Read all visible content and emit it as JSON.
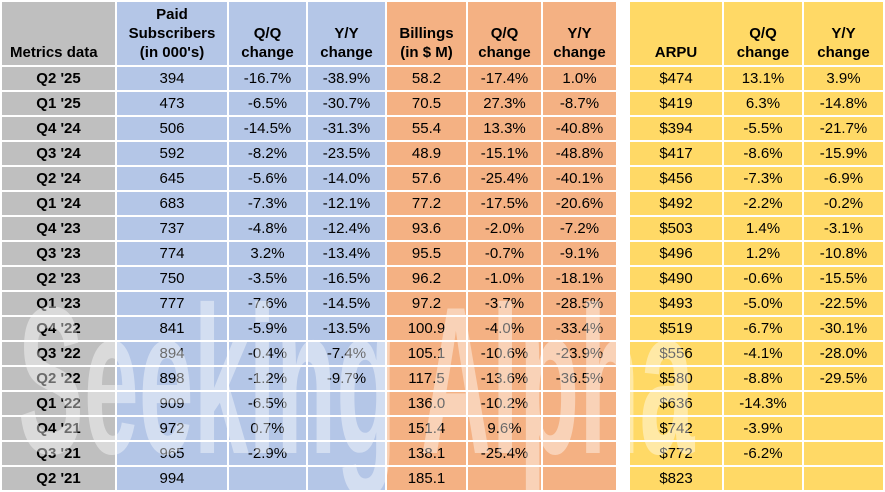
{
  "watermark_text": "Seeking Alpha",
  "colors": {
    "label_gray": "#bfbfbf",
    "subscribers_blue": "#b4c6e7",
    "billings_orange": "#f4b183",
    "arpu_yellow": "#ffd966",
    "gridline_white": "#ffffff",
    "text_black": "#000000"
  },
  "header": {
    "corner": "Metrics data",
    "paid_subscribers": "Paid\nSubscribers\n(in 000's)",
    "qq": "Q/Q\nchange",
    "yy": "Y/Y\nchange",
    "billings": "Billings\n(in $ M)",
    "arpu": "ARPU"
  },
  "chart_data": {
    "type": "table",
    "corner_label": "Metrics data",
    "column_groups": [
      {
        "name": "paid-subscribers",
        "color": "#b4c6e7",
        "columns": [
          "Paid Subscribers (in 000's)",
          "Q/Q change",
          "Y/Y change"
        ]
      },
      {
        "name": "billings",
        "color": "#f4b183",
        "columns": [
          "Billings (in $ M)",
          "Q/Q change",
          "Y/Y change"
        ]
      },
      {
        "name": "arpu",
        "color": "#ffd966",
        "columns": [
          "ARPU",
          "Q/Q change",
          "Y/Y change"
        ]
      }
    ],
    "rows": [
      {
        "label": "Q2 '25",
        "cells": [
          "394",
          "-16.7%",
          "-38.9%",
          "58.2",
          "-17.4%",
          "1.0%",
          "$474",
          "13.1%",
          "3.9%"
        ]
      },
      {
        "label": "Q1 '25",
        "cells": [
          "473",
          "-6.5%",
          "-30.7%",
          "70.5",
          "27.3%",
          "-8.7%",
          "$419",
          "6.3%",
          "-14.8%"
        ]
      },
      {
        "label": "Q4 '24",
        "cells": [
          "506",
          "-14.5%",
          "-31.3%",
          "55.4",
          "13.3%",
          "-40.8%",
          "$394",
          "-5.5%",
          "-21.7%"
        ]
      },
      {
        "label": "Q3 '24",
        "cells": [
          "592",
          "-8.2%",
          "-23.5%",
          "48.9",
          "-15.1%",
          "-48.8%",
          "$417",
          "-8.6%",
          "-15.9%"
        ]
      },
      {
        "label": "Q2 '24",
        "cells": [
          "645",
          "-5.6%",
          "-14.0%",
          "57.6",
          "-25.4%",
          "-40.1%",
          "$456",
          "-7.3%",
          "-6.9%"
        ]
      },
      {
        "label": "Q1 '24",
        "cells": [
          "683",
          "-7.3%",
          "-12.1%",
          "77.2",
          "-17.5%",
          "-20.6%",
          "$492",
          "-2.2%",
          "-0.2%"
        ]
      },
      {
        "label": "Q4 '23",
        "cells": [
          "737",
          "-4.8%",
          "-12.4%",
          "93.6",
          "-2.0%",
          "-7.2%",
          "$503",
          "1.4%",
          "-3.1%"
        ]
      },
      {
        "label": "Q3 '23",
        "cells": [
          "774",
          "3.2%",
          "-13.4%",
          "95.5",
          "-0.7%",
          "-9.1%",
          "$496",
          "1.2%",
          "-10.8%"
        ]
      },
      {
        "label": "Q2 '23",
        "cells": [
          "750",
          "-3.5%",
          "-16.5%",
          "96.2",
          "-1.0%",
          "-18.1%",
          "$490",
          "-0.6%",
          "-15.5%"
        ]
      },
      {
        "label": "Q1 '23",
        "cells": [
          "777",
          "-7.6%",
          "-14.5%",
          "97.2",
          "-3.7%",
          "-28.5%",
          "$493",
          "-5.0%",
          "-22.5%"
        ]
      },
      {
        "label": "Q4 '22",
        "cells": [
          "841",
          "-5.9%",
          "-13.5%",
          "100.9",
          "-4.0%",
          "-33.4%",
          "$519",
          "-6.7%",
          "-30.1%"
        ]
      },
      {
        "label": "Q3 '22",
        "cells": [
          "894",
          "-0.4%",
          "-7.4%",
          "105.1",
          "-10.6%",
          "-23.9%",
          "$556",
          "-4.1%",
          "-28.0%"
        ]
      },
      {
        "label": "Q2 '22",
        "cells": [
          "898",
          "-1.2%",
          "-9.7%",
          "117.5",
          "-13.6%",
          "-36.5%",
          "$580",
          "-8.8%",
          "-29.5%"
        ]
      },
      {
        "label": "Q1 '22",
        "cells": [
          "909",
          "-6.5%",
          "",
          "136.0",
          "-10.2%",
          "",
          "$636",
          "-14.3%",
          ""
        ]
      },
      {
        "label": "Q4 '21",
        "cells": [
          "972",
          "0.7%",
          "",
          "151.4",
          "9.6%",
          "",
          "$742",
          "-3.9%",
          ""
        ]
      },
      {
        "label": "Q3 '21",
        "cells": [
          "965",
          "-2.9%",
          "",
          "138.1",
          "-25.4%",
          "",
          "$772",
          "-6.2%",
          ""
        ]
      },
      {
        "label": "Q2 '21",
        "cells": [
          "994",
          "",
          "",
          "185.1",
          "",
          "",
          "$823",
          "",
          ""
        ]
      }
    ]
  }
}
